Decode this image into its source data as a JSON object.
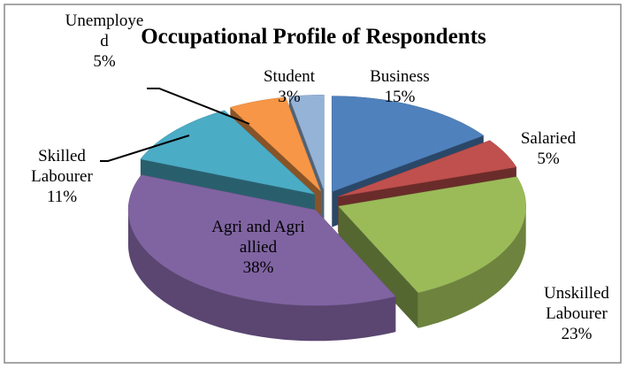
{
  "chart_data": {
    "type": "pie3d",
    "title": "Occupational Profile of Respondents",
    "categories": [
      "Business",
      "Salaried",
      "Unskilled Labourer",
      "Agri and Agri allied",
      "Skilled Labourer",
      "Unemployed",
      "Student"
    ],
    "values": [
      15,
      5,
      23,
      38,
      11,
      5,
      3
    ],
    "value_labels": [
      "15%",
      "5%",
      "23%",
      "38%",
      "11%",
      "5%",
      "3%"
    ],
    "colors": [
      "#4f81bd",
      "#c0504d",
      "#9bbb59",
      "#8064a2",
      "#4bacc6",
      "#f79646",
      "#95b3d7"
    ]
  }
}
